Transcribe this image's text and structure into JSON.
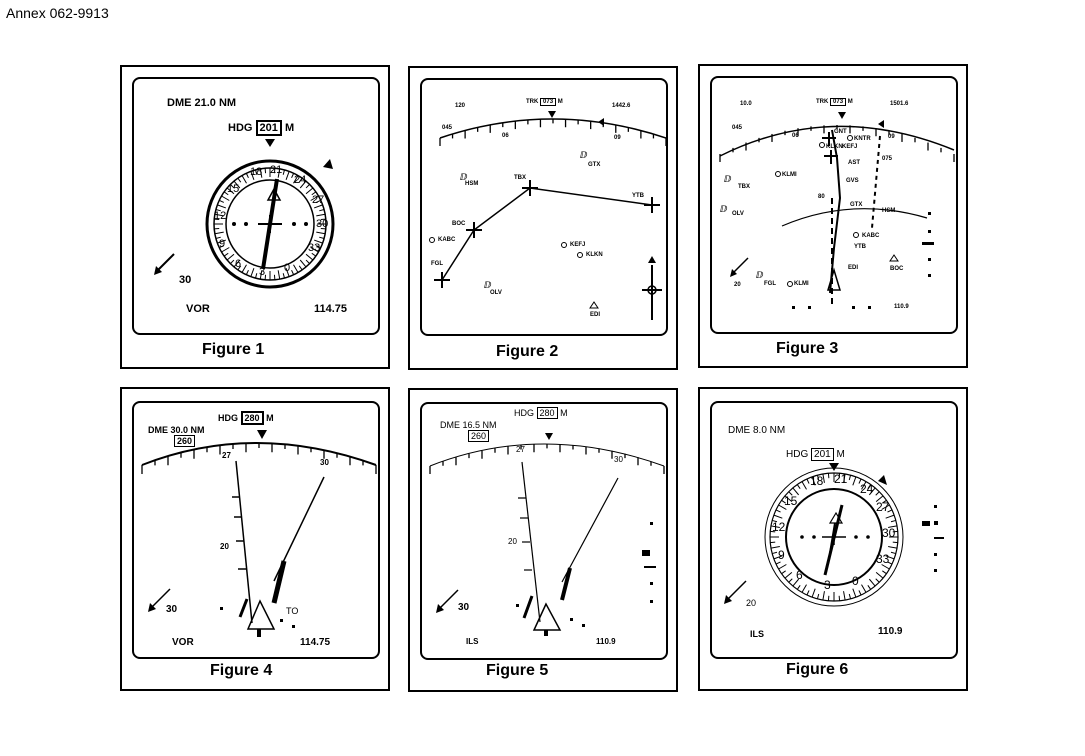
{
  "annex": "Annex 062-9913",
  "figures": [
    {
      "caption": "Figure 1",
      "dme": "DME 21.0 NM",
      "hdg_label": "HDG",
      "hdg_value": "201",
      "hdg_unit": "M",
      "wind": "30",
      "source": "VOR",
      "freq": "114.75",
      "compass": [
        "18",
        "21",
        "24",
        "27",
        "30",
        "33",
        "0",
        "3",
        "6",
        "9",
        "12",
        "15"
      ]
    },
    {
      "caption": "Figure 2",
      "trk_label": "TRK",
      "trk_value": "073",
      "trk_unit": "M",
      "left_top": "120",
      "right_top": "1442.6",
      "scale_labels": [
        "045",
        "06",
        "09"
      ],
      "waypoints": [
        "HSM",
        "TBX",
        "YTB",
        "GTX",
        "BOC",
        "KABC",
        "KEFJ",
        "KLKN",
        "FGL",
        "OLV",
        "EDI"
      ]
    },
    {
      "caption": "Figure 3",
      "trk_label": "TRK",
      "trk_value": "073",
      "trk_unit": "M",
      "left_top": "10.0",
      "right_top": "1501.6",
      "scale_labels": [
        "045",
        "06",
        "09",
        "075"
      ],
      "waypoints": [
        "GNT",
        "KNTR",
        "KLKN",
        "KEFJ",
        "AST",
        "KLMI",
        "TBX",
        "GVS",
        "OLV",
        "GTX",
        "HSM",
        "KABC",
        "YTB",
        "EDI",
        "BOC",
        "FGL",
        "KLMI"
      ],
      "arc_label": "80",
      "wind": "20",
      "freq": "110.9"
    },
    {
      "caption": "Figure 4",
      "dme": "DME 30.0 NM",
      "hdg_label": "HDG",
      "hdg_value": "280",
      "hdg_unit": "M",
      "course_box": "260",
      "scale_labels": [
        "27",
        "30"
      ],
      "range_mark": "20",
      "wind": "30",
      "to_flag": "TO",
      "source": "VOR",
      "freq": "114.75"
    },
    {
      "caption": "Figure 5",
      "dme": "DME 16.5 NM",
      "hdg_label": "HDG",
      "hdg_value": "280",
      "hdg_unit": "M",
      "course_box": "260",
      "scale_labels": [
        "27",
        "30"
      ],
      "range_mark": "20",
      "wind": "30",
      "source": "ILS",
      "freq": "110.9"
    },
    {
      "caption": "Figure 6",
      "dme": "DME 8.0 NM",
      "hdg_label": "HDG",
      "hdg_value": "201",
      "hdg_unit": "M",
      "wind": "20",
      "source": "ILS",
      "freq": "110.9",
      "compass": [
        "18",
        "21",
        "24",
        "27",
        "30",
        "33",
        "0",
        "3",
        "6",
        "9",
        "12",
        "15"
      ]
    }
  ]
}
